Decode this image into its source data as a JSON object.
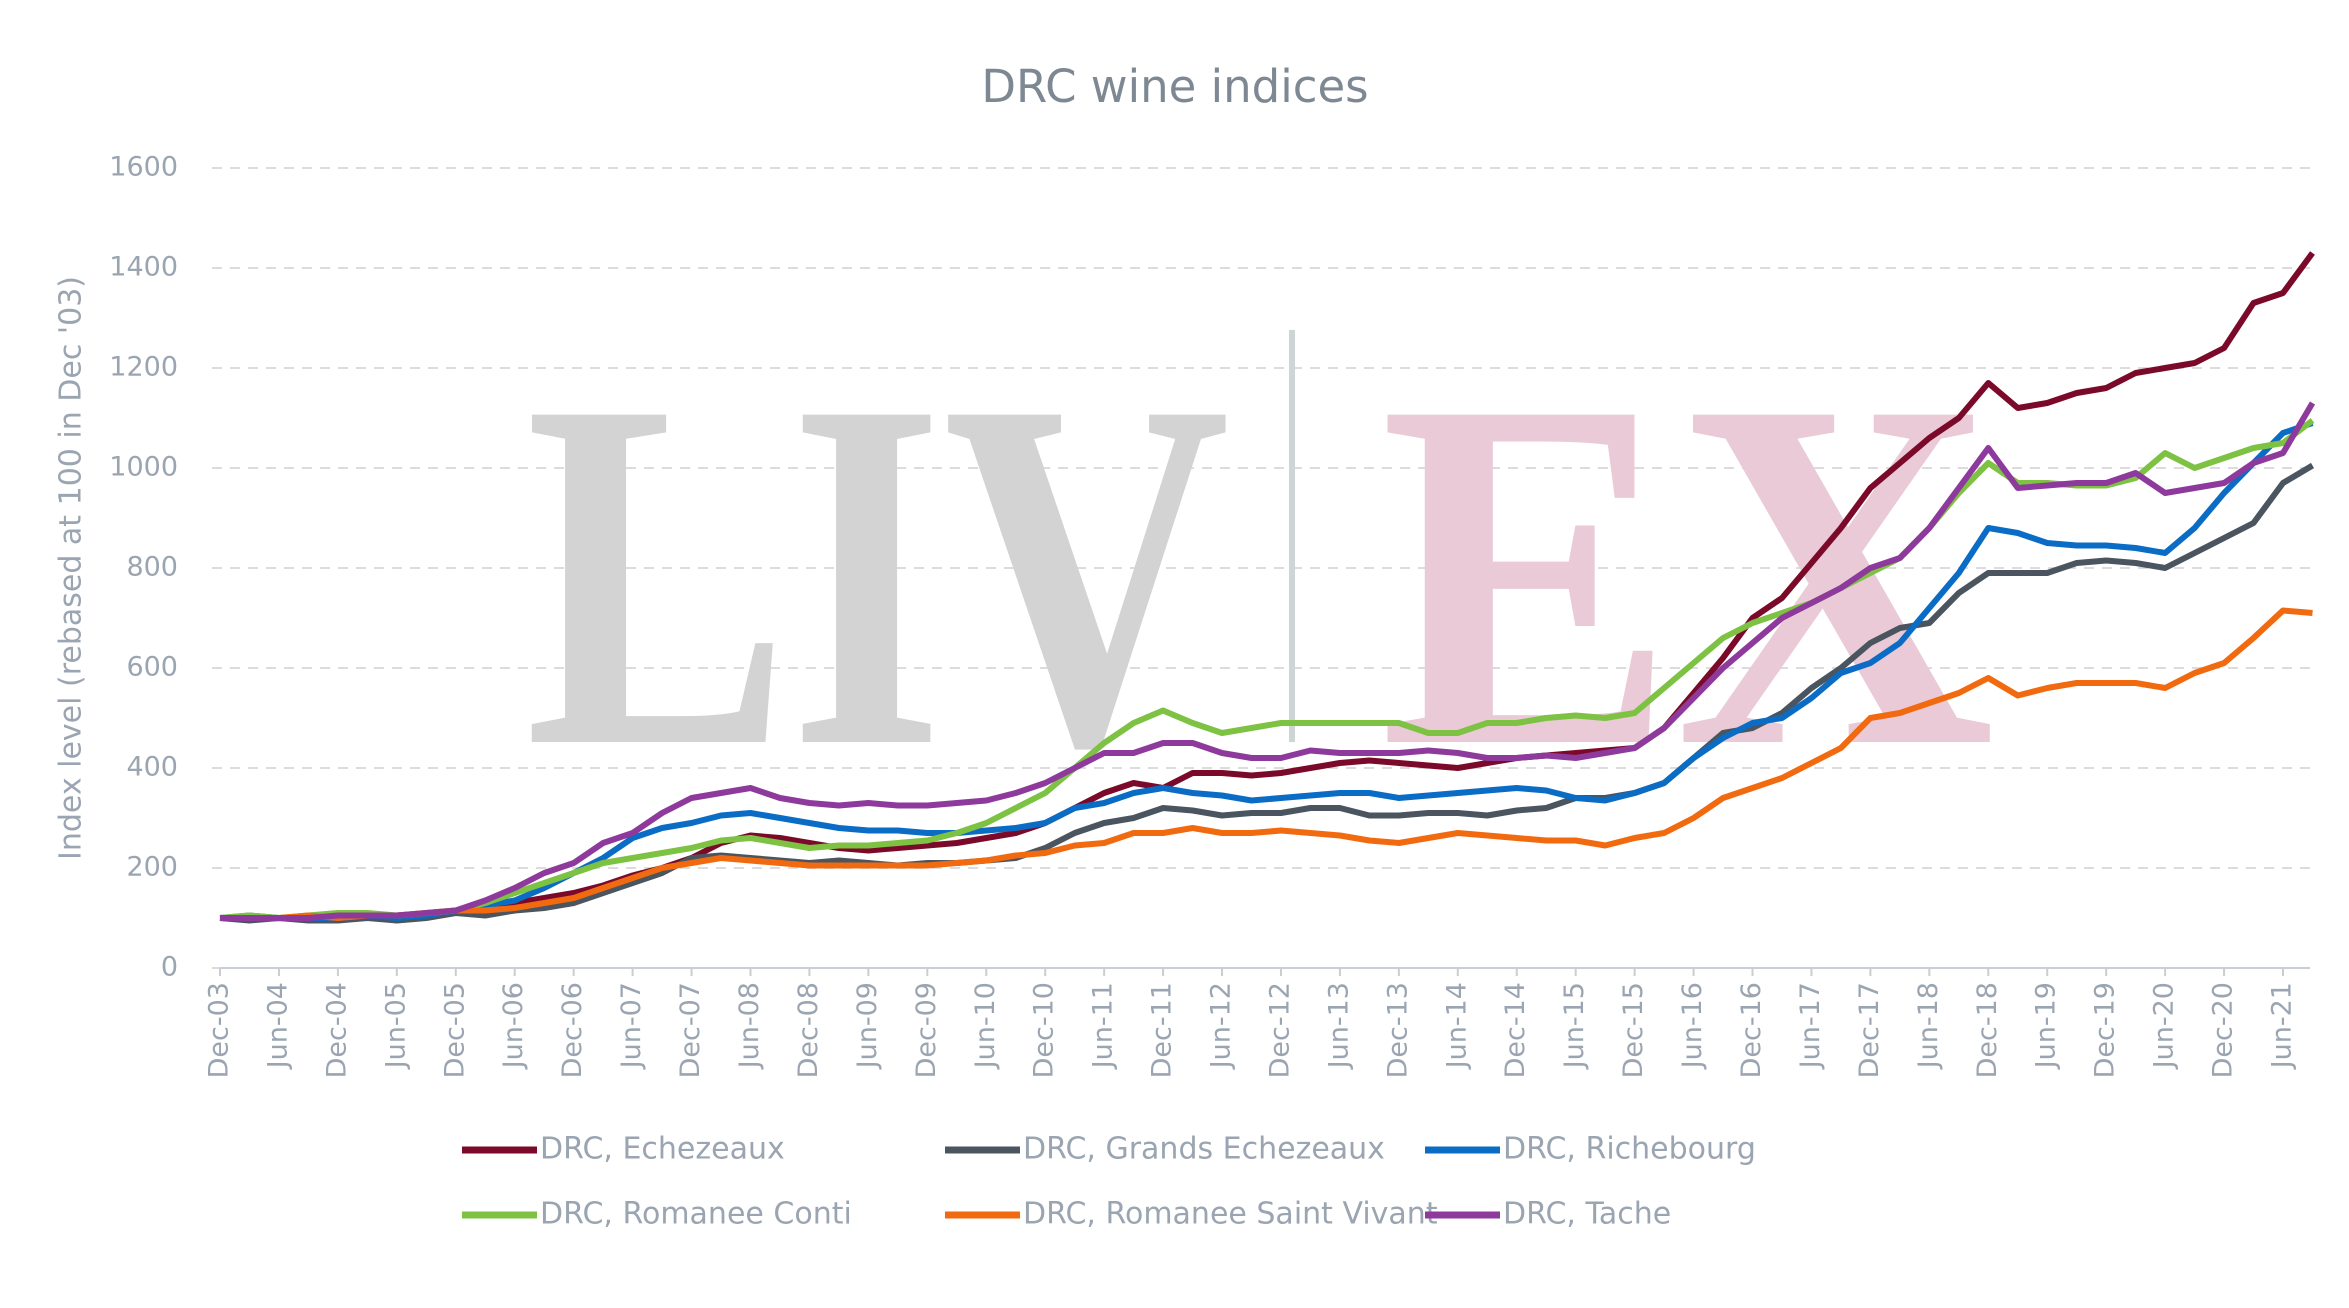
{
  "chart_data": {
    "type": "line",
    "title": "DRC wine indices",
    "y_label": "Index level (rebased at 100 in Dec '03)",
    "watermark": {
      "left": "LIV",
      "right": "EX"
    },
    "categories": [
      "Dec-03",
      null,
      "Jun-04",
      null,
      "Dec-04",
      null,
      "Jun-05",
      null,
      "Dec-05",
      null,
      "Jun-06",
      null,
      "Dec-06",
      null,
      "Jun-07",
      null,
      "Dec-07",
      null,
      "Jun-08",
      null,
      "Dec-08",
      null,
      "Jun-09",
      null,
      "Dec-09",
      null,
      "Jun-10",
      null,
      "Dec-10",
      null,
      "Jun-11",
      null,
      "Dec-11",
      null,
      "Jun-12",
      null,
      "Dec-12",
      null,
      "Jun-13",
      null,
      "Dec-13",
      null,
      "Jun-14",
      null,
      "Dec-14",
      null,
      "Jun-15",
      null,
      "Dec-15",
      null,
      "Jun-16",
      null,
      "Dec-16",
      null,
      "Jun-17",
      null,
      "Dec-17",
      null,
      "Jun-18",
      null,
      "Dec-18",
      null,
      "Jun-19",
      null,
      "Dec-19",
      null,
      "Jun-20",
      null,
      "Dec-20",
      null,
      "Jun-21",
      null
    ],
    "series": [
      {
        "name": "DRC, Echezeaux",
        "color": "#7b0a2a",
        "values": [
          100,
          98,
          100,
          98,
          100,
          102,
          105,
          108,
          115,
          120,
          130,
          140,
          150,
          165,
          185,
          200,
          220,
          250,
          265,
          260,
          250,
          240,
          235,
          240,
          245,
          250,
          260,
          270,
          290,
          320,
          350,
          370,
          360,
          390,
          390,
          385,
          390,
          400,
          410,
          415,
          410,
          405,
          400,
          410,
          420,
          425,
          430,
          435,
          440,
          480,
          550,
          620,
          700,
          740,
          810,
          880,
          960,
          1010,
          1060,
          1100,
          1170,
          1120,
          1130,
          1150,
          1160,
          1190,
          1200,
          1210,
          1240,
          1330,
          1350,
          1430
        ]
      },
      {
        "name": "DRC, Grands Echezeaux",
        "color": "#4a5560",
        "values": [
          100,
          95,
          100,
          95,
          95,
          100,
          95,
          100,
          110,
          105,
          115,
          120,
          130,
          150,
          170,
          190,
          220,
          225,
          220,
          215,
          210,
          215,
          210,
          205,
          210,
          210,
          215,
          220,
          240,
          270,
          290,
          300,
          320,
          315,
          305,
          310,
          310,
          320,
          320,
          305,
          305,
          310,
          310,
          305,
          315,
          320,
          340,
          340,
          350,
          370,
          420,
          470,
          480,
          510,
          560,
          600,
          650,
          680,
          690,
          750,
          790,
          790,
          790,
          810,
          815,
          810,
          800,
          830,
          860,
          890,
          970,
          1005
        ]
      },
      {
        "name": "DRC, Richebourg",
        "color": "#0a6cc4",
        "values": [
          100,
          105,
          100,
          100,
          100,
          105,
          100,
          105,
          115,
          125,
          135,
          160,
          190,
          220,
          260,
          280,
          290,
          305,
          310,
          300,
          290,
          280,
          275,
          275,
          270,
          270,
          275,
          280,
          290,
          320,
          330,
          350,
          360,
          350,
          345,
          335,
          340,
          345,
          350,
          350,
          340,
          345,
          350,
          355,
          360,
          355,
          340,
          335,
          350,
          370,
          420,
          460,
          490,
          500,
          540,
          590,
          610,
          650,
          720,
          790,
          880,
          870,
          850,
          845,
          845,
          840,
          830,
          880,
          950,
          1010,
          1070,
          1090
        ]
      },
      {
        "name": "DRC, Romanee Conti",
        "color": "#7dc242",
        "values": [
          100,
          105,
          100,
          105,
          110,
          110,
          105,
          110,
          115,
          130,
          150,
          170,
          190,
          210,
          220,
          230,
          240,
          255,
          260,
          250,
          240,
          245,
          245,
          250,
          255,
          270,
          290,
          320,
          350,
          400,
          450,
          490,
          515,
          490,
          470,
          480,
          490,
          490,
          490,
          490,
          490,
          470,
          470,
          490,
          490,
          500,
          505,
          500,
          510,
          560,
          610,
          660,
          690,
          710,
          730,
          760,
          790,
          820,
          880,
          950,
          1010,
          970,
          970,
          965,
          965,
          980,
          1030,
          1000,
          1020,
          1040,
          1050,
          1095
        ]
      },
      {
        "name": "DRC, Romanee Saint Vivant",
        "color": "#f26a10",
        "values": [
          100,
          100,
          100,
          105,
          100,
          105,
          105,
          110,
          115,
          115,
          120,
          130,
          140,
          160,
          180,
          200,
          210,
          220,
          215,
          210,
          205,
          205,
          205,
          205,
          205,
          210,
          215,
          225,
          230,
          245,
          250,
          270,
          270,
          280,
          270,
          270,
          275,
          270,
          265,
          255,
          250,
          260,
          270,
          265,
          260,
          255,
          255,
          245,
          260,
          270,
          300,
          340,
          360,
          380,
          410,
          440,
          500,
          510,
          530,
          550,
          580,
          545,
          560,
          570,
          570,
          570,
          560,
          590,
          610,
          660,
          715,
          710
        ]
      },
      {
        "name": "DRC, Tache",
        "color": "#8e3a9c",
        "values": [
          100,
          100,
          100,
          100,
          105,
          105,
          105,
          110,
          115,
          135,
          160,
          190,
          210,
          250,
          270,
          310,
          340,
          350,
          360,
          340,
          330,
          325,
          330,
          325,
          325,
          330,
          335,
          350,
          370,
          400,
          430,
          430,
          450,
          450,
          430,
          420,
          420,
          435,
          430,
          430,
          430,
          435,
          430,
          420,
          420,
          425,
          420,
          430,
          440,
          480,
          540,
          600,
          650,
          700,
          730,
          760,
          800,
          820,
          880,
          960,
          1040,
          960,
          965,
          970,
          970,
          990,
          950,
          960,
          970,
          1010,
          1030,
          1130
        ]
      }
    ],
    "ylim": [
      0,
      1600
    ],
    "yticks": [
      0,
      200,
      400,
      600,
      800,
      1000,
      1200,
      1400,
      1600
    ],
    "grid": true
  }
}
